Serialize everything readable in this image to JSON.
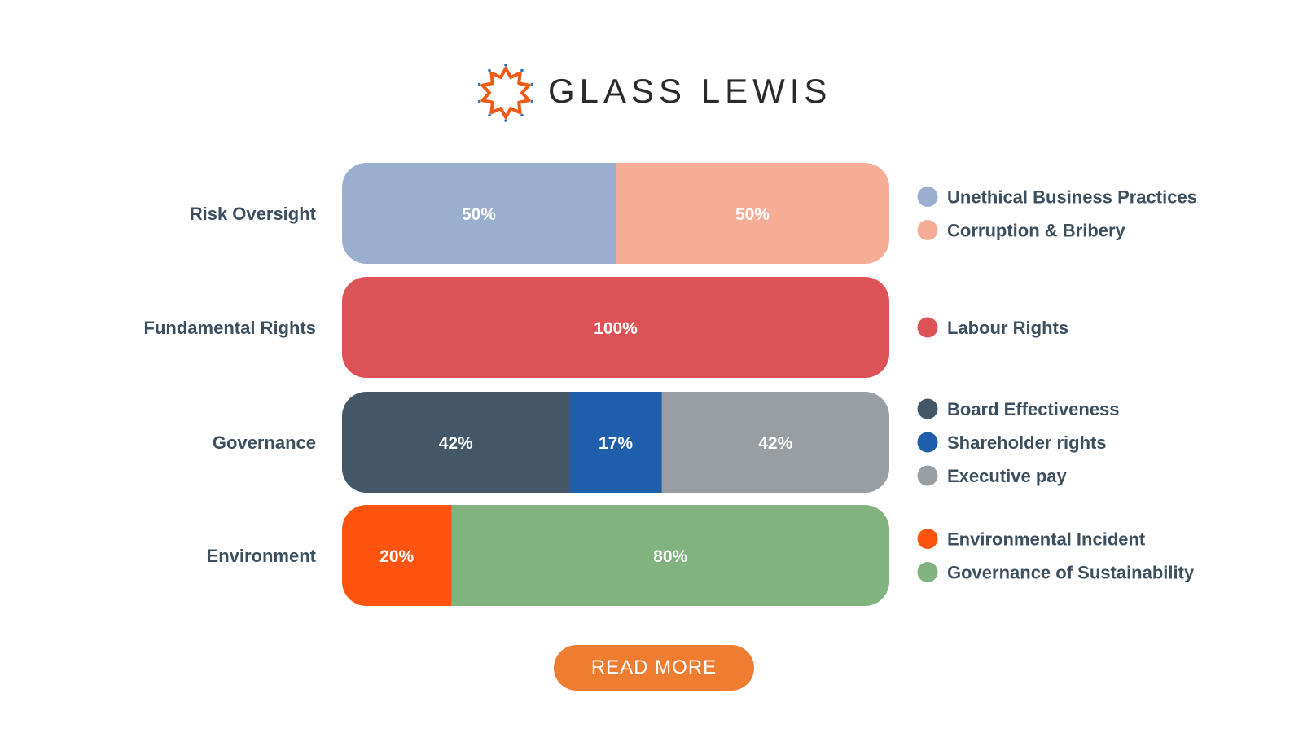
{
  "brand": {
    "name": "GLASS LEWIS"
  },
  "button": {
    "read_more": "READ MORE"
  },
  "colors": {
    "button": "#ee7d32",
    "label_text": "#3d4f5f",
    "logo_orange": "#f05a14",
    "logo_dots": "#2f6db5"
  },
  "chart_data": {
    "type": "bar",
    "orientation": "horizontal",
    "stacked": true,
    "normalized_to": 100,
    "categories": [
      "Risk Oversight",
      "Fundamental Rights",
      "Governance",
      "Environment"
    ],
    "groups": [
      {
        "category": "Risk Oversight",
        "segments": [
          {
            "name": "Unethical Business Practices",
            "value": 50,
            "label": "50%",
            "color": "#98afd0"
          },
          {
            "name": "Corruption & Bribery",
            "value": 50,
            "label": "50%",
            "color": "#f5ad96"
          }
        ]
      },
      {
        "category": "Fundamental Rights",
        "segments": [
          {
            "name": "Labour Rights",
            "value": 100,
            "label": "100%",
            "color": "#dc5256"
          }
        ]
      },
      {
        "category": "Governance",
        "segments": [
          {
            "name": "Board Effectiveness",
            "value": 42,
            "label": "42%",
            "color": "#435766"
          },
          {
            "name": "Shareholder rights",
            "value": 17,
            "label": "17%",
            "color": "#1f5eab"
          },
          {
            "name": "Executive pay",
            "value": 42,
            "label": "42%",
            "color": "#999ea2"
          }
        ]
      },
      {
        "category": "Environment",
        "segments": [
          {
            "name": "Environmental Incident",
            "value": 20,
            "label": "20%",
            "color": "#ff5310"
          },
          {
            "name": "Governance of Sustainability",
            "value": 80,
            "label": "80%",
            "color": "#80b37e"
          }
        ]
      }
    ],
    "legend_placement": "right",
    "grid": false
  }
}
